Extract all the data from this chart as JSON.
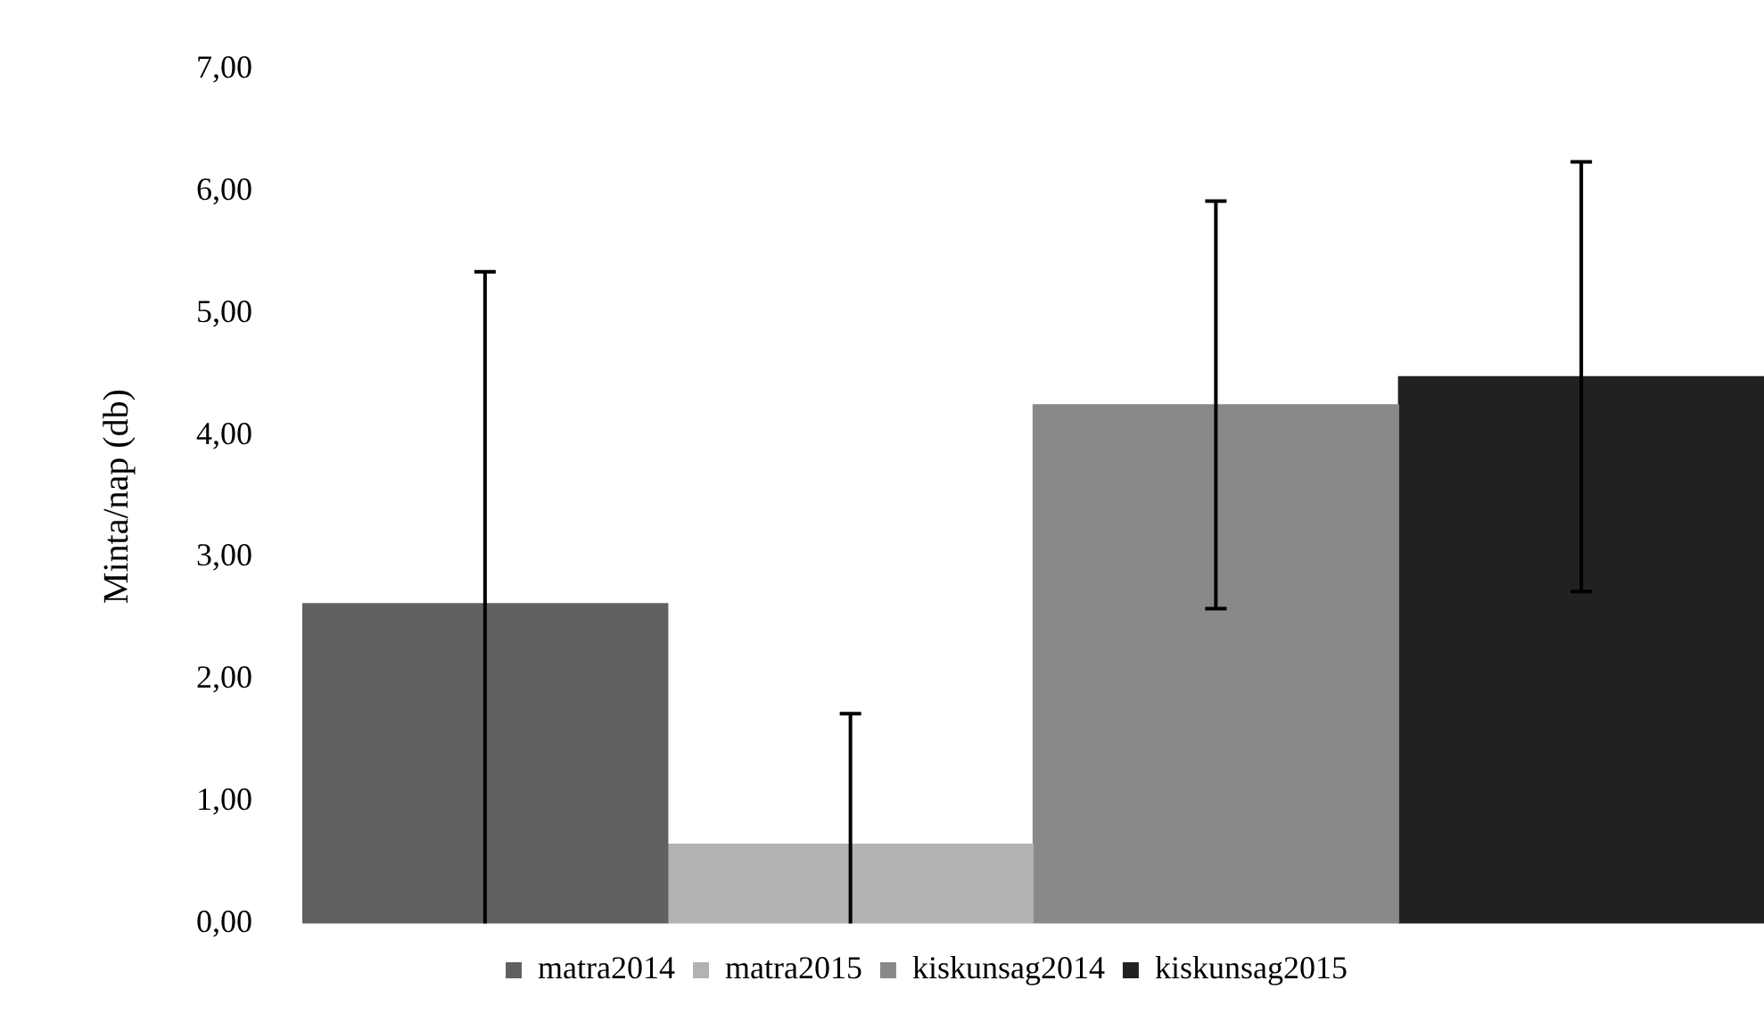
{
  "chart_data": {
    "type": "bar",
    "ylabel": "Minta/nap (db)",
    "categories": [
      null
    ],
    "series": [
      {
        "name": "matra2014",
        "color": "#606060",
        "values": [
          2.62
        ],
        "errors": [
          [
            0,
            5.34
          ]
        ]
      },
      {
        "name": "matra2015",
        "color": "#b2b2b2",
        "values": [
          0.65
        ],
        "errors": [
          [
            0,
            1.72
          ]
        ]
      },
      {
        "name": "kiskunsag2014",
        "color": "#898989",
        "values": [
          4.25
        ],
        "errors": [
          1.67
        ]
      },
      {
        "name": "kiskunsag2015",
        "color": "#212121",
        "values": [
          4.48
        ],
        "errors": [
          1.76
        ]
      }
    ],
    "ylim": [
      0,
      7
    ],
    "yticks": [
      {
        "value": 0,
        "label": "0,00"
      },
      {
        "value": 1,
        "label": "1,00"
      },
      {
        "value": 2,
        "label": "2,00"
      },
      {
        "value": 3,
        "label": "3,00"
      },
      {
        "value": 4,
        "label": "4,00"
      },
      {
        "value": 5,
        "label": "5,00"
      },
      {
        "value": 6,
        "label": "6,00"
      },
      {
        "value": 7,
        "label": "7,00"
      }
    ],
    "grid": false,
    "legend": "bottom"
  }
}
